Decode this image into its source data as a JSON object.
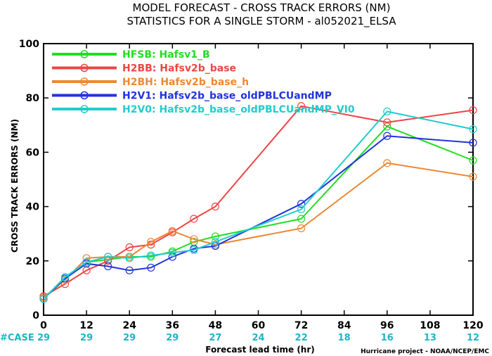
{
  "chart_data": {
    "type": "line",
    "title": "MODEL FORECAST - CROSS TRACK ERRORS (NM)",
    "subtitle": "STATISTICS FOR A SINGLE STORM - al052021_ELSA",
    "xlabel": "Forecast lead time (hr)",
    "ylabel": "CROSS TRACK ERRORS (NM)",
    "xlim": [
      0,
      120
    ],
    "ylim": [
      0,
      100
    ],
    "x_ticks": [
      0,
      12,
      24,
      36,
      48,
      60,
      72,
      84,
      96,
      108,
      120
    ],
    "y_ticks": [
      0,
      20,
      40,
      60,
      80,
      100
    ],
    "case_label": "#CASE",
    "case_counts": [
      29,
      29,
      29,
      29,
      27,
      24,
      22,
      18,
      16,
      13,
      12
    ],
    "credit": "Hurricane project - NOAA/NCEP/EMC",
    "legend_placement": "top-left",
    "series": [
      {
        "name": "HFSB: Hafsv1_B",
        "color": "#22dd22",
        "x": [
          0,
          6,
          12,
          18,
          24,
          30,
          36,
          42,
          48,
          72,
          96,
          120
        ],
        "values": [
          6,
          14,
          19.5,
          20.5,
          21.5,
          21.5,
          23.5,
          27,
          29,
          35.5,
          69.5,
          57
        ]
      },
      {
        "name": "H2BB: Hafsv2b_base",
        "color": "#ee4444",
        "x": [
          0,
          6,
          12,
          18,
          24,
          30,
          36,
          42,
          48,
          72,
          96,
          120
        ],
        "values": [
          7,
          11.5,
          16.5,
          20,
          25,
          26,
          30.5,
          35.5,
          40,
          77,
          71,
          75.5
        ]
      },
      {
        "name": "H2BH: Hafsv2b_base_h",
        "color": "#ee8833",
        "x": [
          0,
          6,
          12,
          18,
          24,
          30,
          36,
          42,
          48,
          72,
          96,
          120
        ],
        "values": [
          6.5,
          13,
          21,
          21.5,
          21.5,
          27,
          31,
          28,
          26,
          32,
          56,
          51
        ]
      },
      {
        "name": "H2V1: Hafsv2b_base_oldPBLCUandMP",
        "color": "#2233dd",
        "x": [
          0,
          6,
          12,
          18,
          24,
          30,
          36,
          42,
          48,
          72,
          96,
          120
        ],
        "values": [
          6,
          13.5,
          19,
          18,
          16.5,
          17.5,
          21.5,
          24.5,
          25.5,
          41,
          66,
          63.5
        ]
      },
      {
        "name": "H2V0: Hafsv2b_base_oldPBLCUandMP_VI0",
        "color": "#22cccc",
        "x": [
          0,
          6,
          12,
          18,
          24,
          30,
          36,
          42,
          48,
          72,
          96,
          120
        ],
        "values": [
          6,
          14,
          19.5,
          21.5,
          21,
          22,
          23,
          24,
          27,
          39,
          75,
          68.5
        ]
      }
    ]
  }
}
